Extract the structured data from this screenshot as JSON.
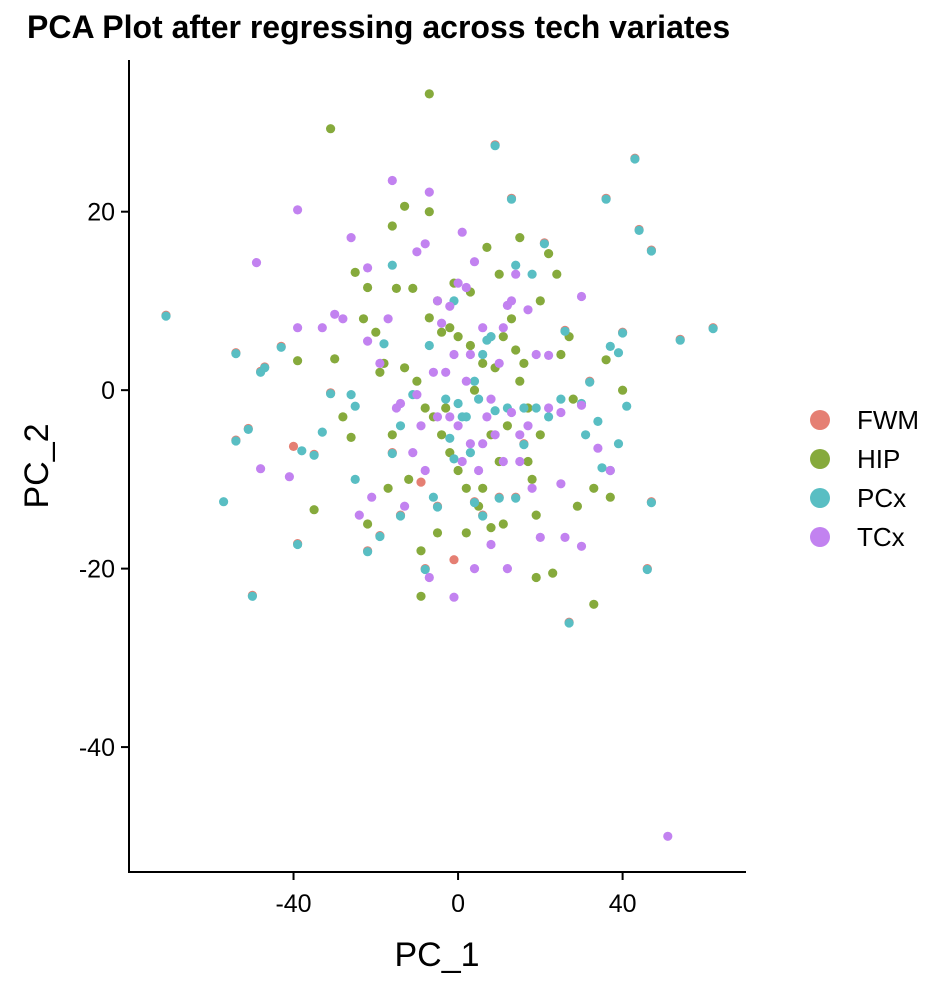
{
  "chart_data": {
    "type": "scatter",
    "title": "PCA Plot after regressing across tech variates",
    "xlabel": "PC_1",
    "ylabel": "PC_2",
    "xlim": [
      -80,
      70
    ],
    "ylim": [
      -54,
      37
    ],
    "xticks": [
      -40,
      0,
      40
    ],
    "yticks": [
      -40,
      -20,
      0,
      20
    ],
    "grid": false,
    "legend_position": "right",
    "series": [
      {
        "name": "FWM",
        "color": "#e57f73",
        "points": [
          [
            -71,
            8.4
          ],
          [
            -54,
            4.2
          ],
          [
            -54,
            -5.6
          ],
          [
            -51,
            -4.3
          ],
          [
            -50,
            -23
          ],
          [
            -48,
            2.1
          ],
          [
            -47,
            2.6
          ],
          [
            -43,
            4.9
          ],
          [
            -40,
            -6.3
          ],
          [
            -39,
            -17.2
          ],
          [
            -35,
            -7.2
          ],
          [
            -31,
            -0.3
          ],
          [
            -22,
            -18
          ],
          [
            -19,
            -16.3
          ],
          [
            -16,
            -7
          ],
          [
            -14,
            -14
          ],
          [
            -9,
            -10.3
          ],
          [
            -8,
            -20
          ],
          [
            -5,
            -13
          ],
          [
            -1,
            -19
          ],
          [
            4,
            -12.5
          ],
          [
            6,
            -14
          ],
          [
            9,
            27.5
          ],
          [
            10,
            -12
          ],
          [
            13,
            21.5
          ],
          [
            14,
            -12
          ],
          [
            16,
            -6
          ],
          [
            21,
            16.5
          ],
          [
            26,
            6.7
          ],
          [
            27,
            -26
          ],
          [
            32,
            1
          ],
          [
            36,
            21.5
          ],
          [
            40,
            6.5
          ],
          [
            43,
            26
          ],
          [
            44,
            18
          ],
          [
            47,
            15.7
          ],
          [
            47,
            -12.5
          ],
          [
            54,
            5.7
          ],
          [
            62,
            7
          ],
          [
            46,
            -20
          ]
        ]
      },
      {
        "name": "HIP",
        "color": "#86aa3c",
        "points": [
          [
            -31,
            29.3
          ],
          [
            -7,
            33.2
          ],
          [
            -13,
            20.6
          ],
          [
            -7,
            20
          ],
          [
            -16,
            18.4
          ],
          [
            -25,
            13.2
          ],
          [
            -22,
            11.5
          ],
          [
            -15,
            11.4
          ],
          [
            -11,
            11.4
          ],
          [
            -7,
            8.1
          ],
          [
            -4,
            6.5
          ],
          [
            -2,
            7
          ],
          [
            0,
            6
          ],
          [
            3,
            5
          ],
          [
            6,
            3
          ],
          [
            9,
            2.5
          ],
          [
            11,
            6
          ],
          [
            14,
            4.5
          ],
          [
            17,
            -2
          ],
          [
            20,
            -5
          ],
          [
            -20,
            6.5
          ],
          [
            -18,
            3
          ],
          [
            -13,
            2.5
          ],
          [
            -10,
            1
          ],
          [
            -8,
            -2
          ],
          [
            -6,
            -3
          ],
          [
            -4,
            -5
          ],
          [
            -2,
            -7
          ],
          [
            0,
            -9
          ],
          [
            2,
            -11
          ],
          [
            5,
            -13
          ],
          [
            8,
            -15.4
          ],
          [
            10,
            -8
          ],
          [
            12,
            -4
          ],
          [
            16,
            3
          ],
          [
            22,
            15.3
          ],
          [
            24,
            13
          ],
          [
            27,
            6
          ],
          [
            -26,
            -5.3
          ],
          [
            -35,
            -13.4
          ],
          [
            -28,
            -3
          ],
          [
            -16,
            -5
          ],
          [
            -5,
            -16
          ],
          [
            2,
            -16
          ],
          [
            -9,
            -23.1
          ],
          [
            -9,
            -18
          ],
          [
            19,
            -21
          ],
          [
            23,
            -20.5
          ],
          [
            29,
            -13
          ],
          [
            33,
            -24
          ],
          [
            33,
            -11
          ],
          [
            37,
            -12
          ],
          [
            40,
            0
          ],
          [
            36,
            3.4
          ],
          [
            15,
            17.1
          ],
          [
            20,
            10
          ],
          [
            28,
            -1
          ],
          [
            4,
            0
          ],
          [
            -1,
            12
          ],
          [
            8,
            -5
          ],
          [
            -12,
            -10
          ],
          [
            -3,
            -2
          ],
          [
            6,
            -11
          ],
          [
            17,
            -8
          ],
          [
            -30,
            3.5
          ],
          [
            -39,
            3.3
          ],
          [
            -22,
            -15
          ],
          [
            -17,
            -11
          ],
          [
            11,
            -15
          ],
          [
            18,
            -10
          ],
          [
            25,
            4
          ],
          [
            -23,
            8
          ],
          [
            -19,
            2
          ],
          [
            -5,
            10
          ],
          [
            3,
            11
          ],
          [
            7,
            16
          ],
          [
            10,
            13
          ],
          [
            13,
            8
          ],
          [
            15,
            1
          ],
          [
            19,
            -14
          ]
        ]
      },
      {
        "name": "PCx",
        "color": "#59bec3",
        "points": [
          [
            -71,
            8.3
          ],
          [
            -54,
            4.1
          ],
          [
            -54,
            -5.7
          ],
          [
            -51,
            -4.4
          ],
          [
            -50,
            -23.1
          ],
          [
            -48,
            2
          ],
          [
            -47,
            2.5
          ],
          [
            -43,
            4.8
          ],
          [
            -39,
            -17.3
          ],
          [
            -35,
            -7.3
          ],
          [
            -31,
            -0.4
          ],
          [
            -22,
            -18.1
          ],
          [
            -19,
            -16.4
          ],
          [
            -16,
            -7.1
          ],
          [
            -14,
            -14.1
          ],
          [
            -8,
            -20.1
          ],
          [
            -5,
            -13.1
          ],
          [
            4,
            -12.6
          ],
          [
            6,
            -14.1
          ],
          [
            9,
            27.4
          ],
          [
            10,
            -12.1
          ],
          [
            13,
            21.4
          ],
          [
            14,
            -12.1
          ],
          [
            16,
            -6.1
          ],
          [
            21,
            16.4
          ],
          [
            26,
            6.6
          ],
          [
            27,
            -26.1
          ],
          [
            32,
            0.9
          ],
          [
            36,
            21.4
          ],
          [
            40,
            6.4
          ],
          [
            43,
            25.9
          ],
          [
            44,
            17.9
          ],
          [
            47,
            15.6
          ],
          [
            47,
            -12.6
          ],
          [
            54,
            5.6
          ],
          [
            62,
            6.9
          ],
          [
            46,
            -20.1
          ],
          [
            -57,
            -12.5
          ],
          [
            -38,
            -6.8
          ],
          [
            -33,
            -4.7
          ],
          [
            -25,
            -1.8
          ],
          [
            -25,
            -10
          ],
          [
            -16,
            14
          ],
          [
            -14,
            -4
          ],
          [
            -11,
            -0.5
          ],
          [
            -6,
            -12
          ],
          [
            -2,
            -5.4
          ],
          [
            1,
            -3
          ],
          [
            3,
            -7
          ],
          [
            5,
            -1
          ],
          [
            7,
            5.6
          ],
          [
            9,
            -2.3
          ],
          [
            12,
            -2
          ],
          [
            16,
            -2
          ],
          [
            19,
            -2
          ],
          [
            22,
            -3
          ],
          [
            25,
            -1
          ],
          [
            30,
            -1.5
          ],
          [
            31,
            -5
          ],
          [
            34,
            -3.5
          ],
          [
            35,
            -8.7
          ],
          [
            37,
            -9
          ],
          [
            39,
            -6
          ],
          [
            41,
            -1.8
          ],
          [
            39,
            4.2
          ],
          [
            37,
            4.9
          ],
          [
            -7,
            5
          ],
          [
            -3,
            -1
          ],
          [
            -1,
            -7.7
          ],
          [
            0,
            -1.5
          ],
          [
            2,
            -3
          ],
          [
            4,
            1
          ],
          [
            6,
            4
          ],
          [
            8,
            6
          ],
          [
            14,
            14
          ],
          [
            18,
            13
          ],
          [
            -18,
            5.2
          ],
          [
            -26,
            -0.5
          ],
          [
            -1,
            10
          ]
        ]
      },
      {
        "name": "TCx",
        "color": "#c282f0",
        "points": [
          [
            51,
            -50
          ],
          [
            -49,
            14.3
          ],
          [
            -39,
            20.2
          ],
          [
            -22,
            13.7
          ],
          [
            -16,
            23.5
          ],
          [
            -10,
            15.5
          ],
          [
            -7,
            22.2
          ],
          [
            1,
            17.7
          ],
          [
            -8,
            16.4
          ],
          [
            -28,
            8
          ],
          [
            -33,
            7
          ],
          [
            -39,
            7
          ],
          [
            -48,
            -8.8
          ],
          [
            -41,
            -9.7
          ],
          [
            -24,
            -14
          ],
          [
            -21,
            -12
          ],
          [
            -13,
            -13
          ],
          [
            -11,
            -7
          ],
          [
            -8,
            -9
          ],
          [
            -5,
            -3
          ],
          [
            -3,
            2
          ],
          [
            -1,
            4
          ],
          [
            0,
            -4
          ],
          [
            2,
            1
          ],
          [
            3,
            -6
          ],
          [
            5,
            -9
          ],
          [
            6,
            -6
          ],
          [
            7,
            -3
          ],
          [
            8,
            -1
          ],
          [
            10,
            3
          ],
          [
            11,
            7
          ],
          [
            12,
            9.5
          ],
          [
            13,
            10
          ],
          [
            14,
            13
          ],
          [
            15,
            -5
          ],
          [
            17,
            -4
          ],
          [
            18,
            -11
          ],
          [
            20,
            -16.5
          ],
          [
            22,
            -2
          ],
          [
            25,
            -2.5
          ],
          [
            26,
            -16.5
          ],
          [
            30,
            -17.5
          ],
          [
            30,
            -1.7
          ],
          [
            30,
            10.5
          ],
          [
            34,
            -6.5
          ],
          [
            37,
            -9
          ],
          [
            -26,
            17.1
          ],
          [
            -30,
            8.5
          ],
          [
            -22,
            5.5
          ],
          [
            -17,
            8
          ],
          [
            -15,
            -2
          ],
          [
            -10,
            -0.5
          ],
          [
            -6,
            2
          ],
          [
            -4,
            7.5
          ],
          [
            -2,
            9.4
          ],
          [
            0,
            12
          ],
          [
            2,
            11.5
          ],
          [
            4,
            14.4
          ],
          [
            6,
            7
          ],
          [
            9,
            -5
          ],
          [
            11,
            -8
          ],
          [
            13,
            -2.5
          ],
          [
            15,
            -8
          ],
          [
            12,
            -20
          ],
          [
            4,
            -20
          ],
          [
            -1,
            -23.2
          ],
          [
            -7,
            -21
          ],
          [
            17,
            9
          ],
          [
            8,
            -17.3
          ],
          [
            -14,
            -1.5
          ],
          [
            -9,
            -4
          ],
          [
            -5,
            10
          ],
          [
            3,
            4
          ],
          [
            -2,
            -3
          ],
          [
            1,
            -8
          ],
          [
            19,
            4
          ],
          [
            25,
            -10.5
          ],
          [
            -19,
            3
          ],
          [
            22,
            3.9
          ]
        ]
      }
    ]
  }
}
